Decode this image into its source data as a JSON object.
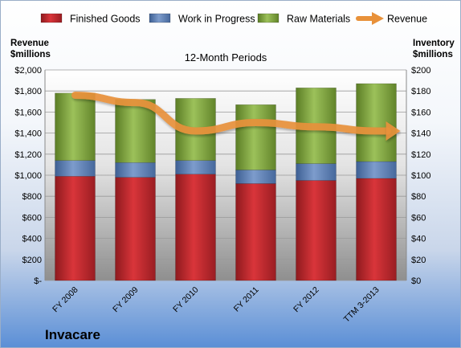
{
  "chart_data": {
    "type": "bar",
    "subtype": "stacked bar with line overlay, dual axis",
    "title": "12-Month Periods",
    "company": "Invacare",
    "categories": [
      "FY 2008",
      "FY 2009",
      "FY 2010",
      "FY 2011",
      "FY 2012",
      "TTM 3-2013"
    ],
    "left_axis": {
      "label_lines": [
        "Revenue",
        "$millions"
      ],
      "ylim": [
        0,
        2000
      ],
      "ticks": [
        0,
        200,
        400,
        600,
        800,
        1000,
        1200,
        1400,
        1600,
        1800,
        2000
      ],
      "tick_labels": [
        "$-",
        "$200",
        "$400",
        "$600",
        "$800",
        "$1,000",
        "$1,200",
        "$1,400",
        "$1,600",
        "$1,800",
        "$2,000"
      ]
    },
    "right_axis": {
      "label_lines": [
        "Inventory",
        "$millions"
      ],
      "ylim": [
        0,
        200
      ],
      "ticks": [
        0,
        20,
        40,
        60,
        80,
        100,
        120,
        140,
        160,
        180,
        200
      ],
      "tick_labels": [
        "$0",
        "$20",
        "$40",
        "$60",
        "$80",
        "$100",
        "$120",
        "$140",
        "$160",
        "$180",
        "$200"
      ]
    },
    "series": [
      {
        "name": "Finished Goods",
        "kind": "bar",
        "axis": "right",
        "color": "#c0292e",
        "values": [
          99,
          98,
          101,
          92,
          95,
          97
        ]
      },
      {
        "name": "Work in Progress",
        "kind": "bar",
        "axis": "right",
        "color": "#5f82b8",
        "values": [
          15,
          14,
          13,
          13,
          16,
          16
        ]
      },
      {
        "name": "Raw Materials",
        "kind": "bar",
        "axis": "right",
        "color": "#7ea33c",
        "values": [
          64,
          60,
          59,
          62,
          72,
          74
        ]
      },
      {
        "name": "Revenue",
        "kind": "line",
        "axis": "left",
        "color": "#e8913a",
        "values": [
          1760,
          1690,
          1420,
          1500,
          1460,
          1420
        ]
      }
    ],
    "legend_position": "top",
    "grid": true
  }
}
